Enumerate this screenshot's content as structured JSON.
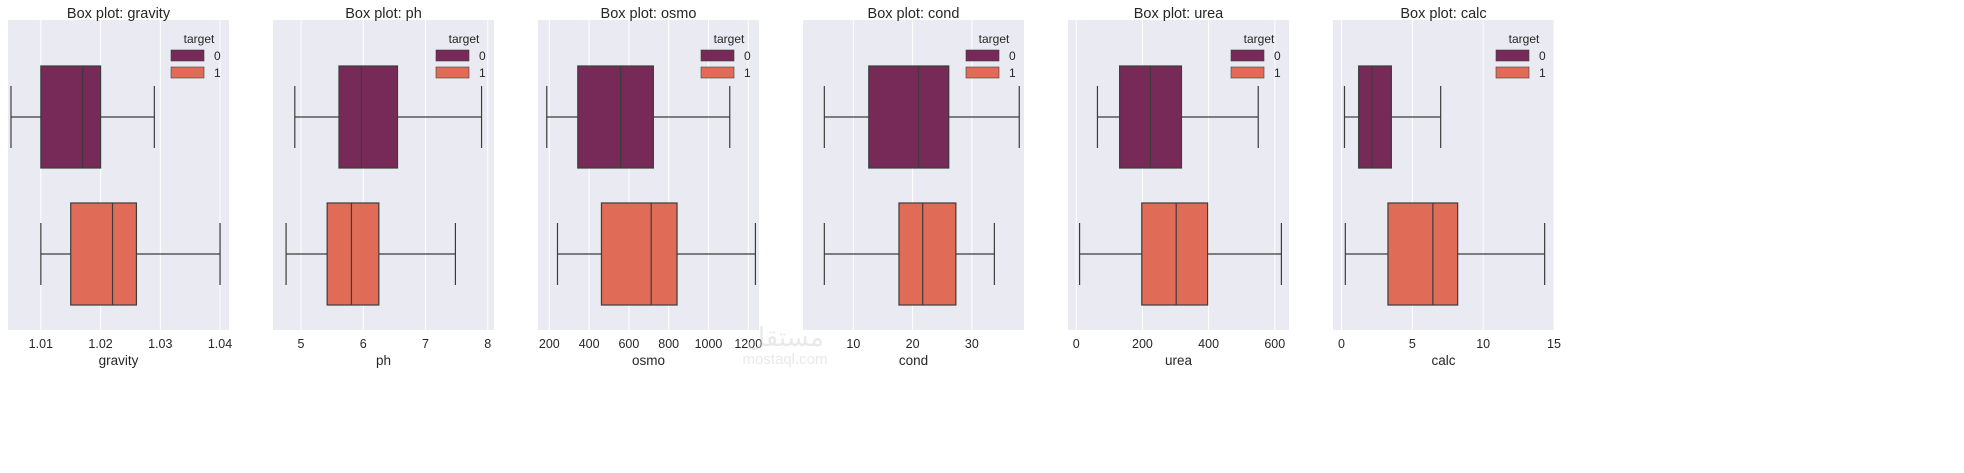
{
  "chart_data": [
    {
      "type": "box",
      "title": "Box plot: gravity",
      "xlabel": "gravity",
      "xlim": [
        1.0045,
        1.0415
      ],
      "xticks": [
        1.01,
        1.02,
        1.03,
        1.04
      ],
      "xtick_labels": [
        "1.01",
        "1.02",
        "1.03",
        "1.04"
      ],
      "grid": true,
      "legend": {
        "title": "target",
        "placement": "top-right",
        "entries": [
          "0",
          "1"
        ]
      },
      "series": [
        {
          "name": "0",
          "whisker_low": 1.005,
          "q1": 1.01,
          "median": 1.017,
          "q3": 1.02,
          "whisker_high": 1.029
        },
        {
          "name": "1",
          "whisker_low": 1.01,
          "q1": 1.015,
          "median": 1.022,
          "q3": 1.026,
          "whisker_high": 1.04
        }
      ]
    },
    {
      "type": "box",
      "title": "Box plot: ph",
      "xlabel": "ph",
      "xlim": [
        4.55,
        8.1
      ],
      "xticks": [
        5,
        6,
        7,
        8
      ],
      "xtick_labels": [
        "5",
        "6",
        "7",
        "8"
      ],
      "grid": true,
      "legend": {
        "title": "target",
        "placement": "top-right",
        "entries": [
          "0",
          "1"
        ]
      },
      "series": [
        {
          "name": "0",
          "whisker_low": 4.9,
          "q1": 5.61,
          "median": 5.97,
          "q3": 6.55,
          "whisker_high": 7.9
        },
        {
          "name": "1",
          "whisker_low": 4.76,
          "q1": 5.42,
          "median": 5.81,
          "q3": 6.25,
          "whisker_high": 7.48
        }
      ]
    },
    {
      "type": "box",
      "title": "Box plot: osmo",
      "xlabel": "osmo",
      "xlim": [
        143,
        1254
      ],
      "xticks": [
        200,
        400,
        600,
        800,
        1000,
        1200
      ],
      "xtick_labels": [
        "200",
        "400",
        "600",
        "800",
        "1000",
        "1200"
      ],
      "grid": true,
      "legend": {
        "title": "target",
        "placement": "top-right",
        "entries": [
          "0",
          "1"
        ]
      },
      "series": [
        {
          "name": "0",
          "whisker_low": 187,
          "q1": 343,
          "median": 558,
          "q3": 723,
          "whisker_high": 1107
        },
        {
          "name": "1",
          "whisker_low": 241,
          "q1": 462,
          "median": 712,
          "q3": 842,
          "whisker_high": 1236
        }
      ]
    },
    {
      "type": "box",
      "title": "Box plot: cond",
      "xlabel": "cond",
      "xlim": [
        1.5,
        38.8
      ],
      "xticks": [
        10,
        20,
        30
      ],
      "xtick_labels": [
        "10",
        "20",
        "30"
      ],
      "grid": true,
      "legend": {
        "title": "target",
        "placement": "top-right",
        "entries": [
          "0",
          "1"
        ]
      },
      "series": [
        {
          "name": "0",
          "whisker_low": 5.1,
          "q1": 12.6,
          "median": 21.0,
          "q3": 26.1,
          "whisker_high": 38.0
        },
        {
          "name": "1",
          "whisker_low": 5.1,
          "q1": 17.7,
          "median": 21.7,
          "q3": 27.3,
          "whisker_high": 33.8
        }
      ]
    },
    {
      "type": "box",
      "title": "Box plot: urea",
      "xlabel": "urea",
      "xlim": [
        -25,
        643
      ],
      "xticks": [
        0,
        200,
        400,
        600
      ],
      "xtick_labels": [
        "0",
        "200",
        "400",
        "600"
      ],
      "grid": true,
      "legend": {
        "title": "target",
        "placement": "top-right",
        "entries": [
          "0",
          "1"
        ]
      },
      "series": [
        {
          "name": "0",
          "whisker_low": 64,
          "q1": 131,
          "median": 224,
          "q3": 318,
          "whisker_high": 550
        },
        {
          "name": "1",
          "whisker_low": 10,
          "q1": 198,
          "median": 302,
          "q3": 397,
          "whisker_high": 620
        }
      ]
    },
    {
      "type": "box",
      "title": "Box plot: calc",
      "xlabel": "calc",
      "xlim": [
        -0.6,
        15
      ],
      "xticks": [
        0,
        5,
        10,
        15
      ],
      "xtick_labels": [
        "0",
        "5",
        "10",
        "15"
      ],
      "grid": true,
      "legend": {
        "title": "target",
        "placement": "top-right",
        "entries": [
          "0",
          "1"
        ]
      },
      "series": [
        {
          "name": "0",
          "whisker_low": 0.21,
          "q1": 1.21,
          "median": 2.15,
          "q3": 3.52,
          "whisker_high": 7.0
        },
        {
          "name": "1",
          "whisker_low": 0.27,
          "q1": 3.28,
          "median": 6.45,
          "q3": 8.2,
          "whisker_high": 14.34
        }
      ]
    }
  ],
  "colors": {
    "series": [
      "#772a58",
      "#e06c57"
    ],
    "plot_background": "#eaeaf2",
    "grid": "#ffffff",
    "box_edge": "#3c3c3c"
  },
  "watermark": {
    "arabic": "مستقل",
    "latin": "mostaql.com"
  }
}
